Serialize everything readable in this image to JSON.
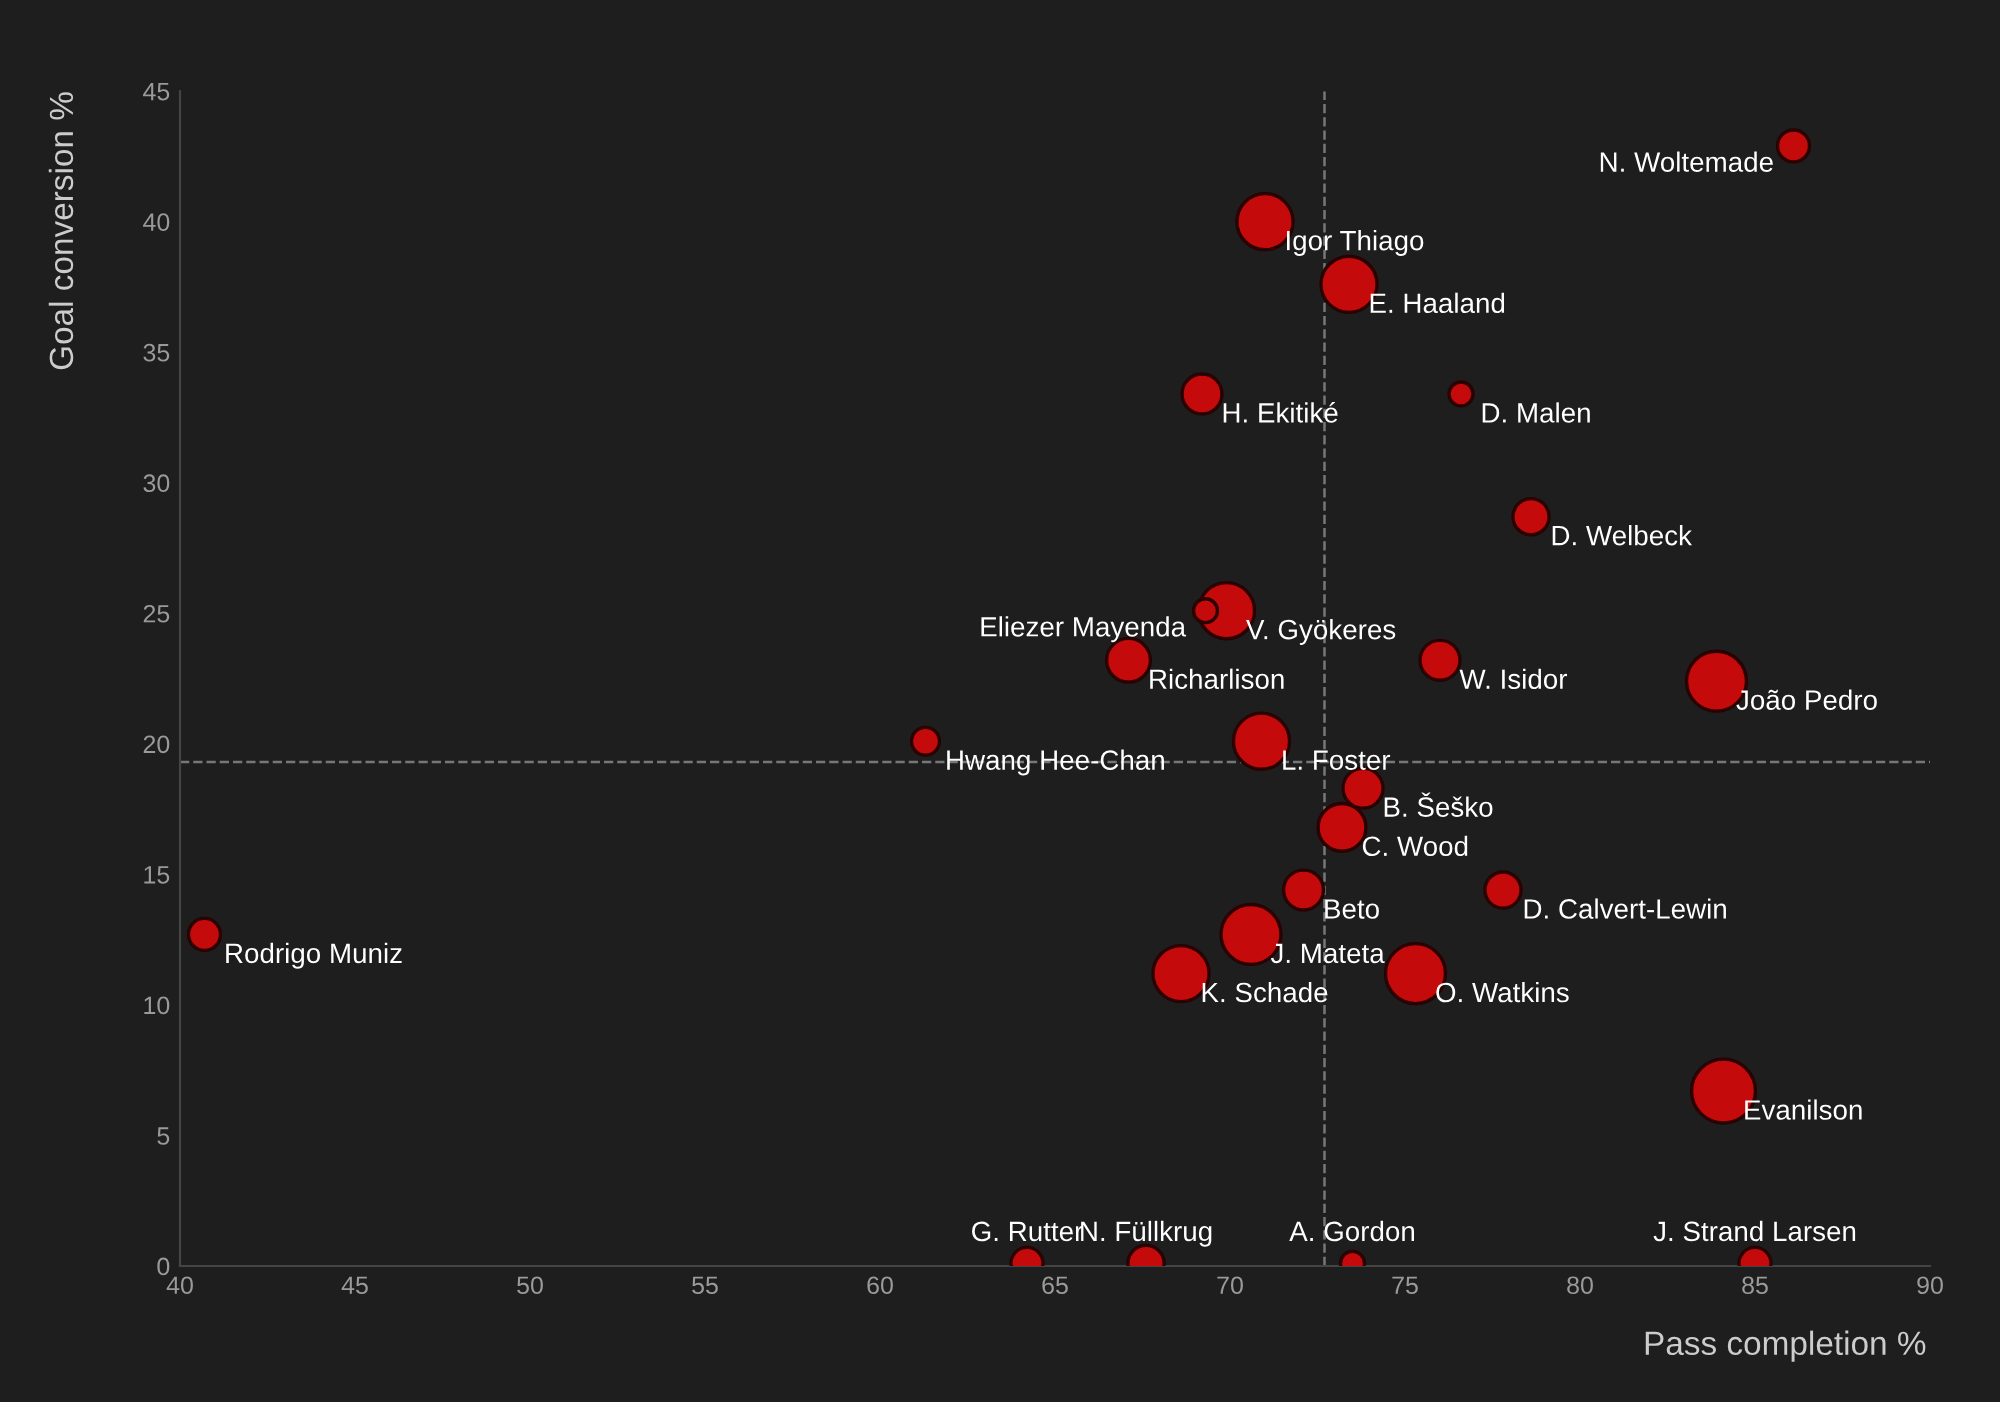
{
  "chart_data": {
    "type": "bubble",
    "xlabel": "Pass completion %",
    "ylabel": "Goal conversion %",
    "xlim": [
      40,
      90
    ],
    "xticks": [
      40,
      45,
      50,
      55,
      60,
      65,
      70,
      75,
      80,
      85,
      90
    ],
    "ylim": [
      0,
      45
    ],
    "yticks": [
      0,
      5,
      10,
      15,
      20,
      25,
      30,
      35,
      40,
      45
    ],
    "grid": false,
    "legend": false,
    "series": [
      {
        "color": "#c40a0a",
        "x": [
          86.1,
          71.0,
          73.4,
          69.2,
          76.6,
          78.6,
          69.9,
          69.3,
          67.1,
          76.0,
          83.9,
          61.3,
          70.9,
          73.8,
          73.2,
          72.1,
          77.8,
          40.7,
          70.6,
          68.6,
          75.3,
          84.1,
          64.2,
          67.6,
          73.5,
          85.0
        ],
        "values": [
          42.9,
          40.0,
          37.6,
          33.4,
          33.4,
          28.7,
          25.1,
          25.1,
          23.2,
          23.2,
          22.4,
          20.1,
          20.1,
          18.3,
          16.8,
          14.4,
          14.4,
          12.7,
          12.7,
          11.2,
          11.2,
          6.7,
          0.1,
          0.1,
          0.1,
          0.1
        ],
        "sizes": [
          0.25,
          0.77,
          0.77,
          0.39,
          0.14,
          0.32,
          0.77,
          0.14,
          0.47,
          0.39,
          0.88,
          0.19,
          0.77,
          0.39,
          0.56,
          0.39,
          0.32,
          0.25,
          0.88,
          0.77,
          0.88,
          1,
          0.25,
          0.32,
          0.14,
          0.25
        ]
      }
    ],
    "ref_lines": [
      {
        "axis": "x",
        "value": 72.7,
        "color": "#777777",
        "line_style": "dashed"
      },
      {
        "axis": "y",
        "value": 19.3,
        "color": "#777777",
        "line_style": "dashed"
      }
    ],
    "annotations": [
      {
        "text": "N. Woltemade",
        "x": 86.1,
        "y": 42.9
      },
      {
        "text": "Igor Thiago",
        "x": 71.0,
        "y": 40.0
      },
      {
        "text": "E. Haaland",
        "x": 73.4,
        "y": 37.6
      },
      {
        "text": "H. Ekitiké",
        "x": 69.2,
        "y": 33.4
      },
      {
        "text": "D. Malen",
        "x": 76.6,
        "y": 33.4
      },
      {
        "text": "D. Welbeck",
        "x": 78.6,
        "y": 28.7
      },
      {
        "text": "V. Gyökeres",
        "x": 69.9,
        "y": 25.1
      },
      {
        "text": "Eliezer Mayenda",
        "x": 69.3,
        "y": 25.1
      },
      {
        "text": "Richarlison",
        "x": 67.1,
        "y": 23.2
      },
      {
        "text": "W. Isidor",
        "x": 76.0,
        "y": 23.2
      },
      {
        "text": "João Pedro",
        "x": 83.9,
        "y": 22.4
      },
      {
        "text": "Hwang Hee-Chan",
        "x": 61.3,
        "y": 20.1
      },
      {
        "text": "L. Foster",
        "x": 70.9,
        "y": 20.1
      },
      {
        "text": "B. Šeško",
        "x": 73.8,
        "y": 18.3
      },
      {
        "text": "C. Wood",
        "x": 73.2,
        "y": 16.8
      },
      {
        "text": "Beto",
        "x": 72.1,
        "y": 14.4
      },
      {
        "text": "D. Calvert-Lewin",
        "x": 77.8,
        "y": 14.4
      },
      {
        "text": "Rodrigo Muniz",
        "x": 40.7,
        "y": 12.7
      },
      {
        "text": "J. Mateta",
        "x": 70.6,
        "y": 12.7
      },
      {
        "text": "K. Schade",
        "x": 68.6,
        "y": 11.2
      },
      {
        "text": "O. Watkins",
        "x": 75.3,
        "y": 11.2
      },
      {
        "text": "Evanilson",
        "x": 84.1,
        "y": 6.7
      },
      {
        "text": "G. Rutter",
        "x": 64.2,
        "y": 0.1
      },
      {
        "text": "N. Füllkrug",
        "x": 67.6,
        "y": 0.1
      },
      {
        "text": "A. Gordon",
        "x": 73.5,
        "y": 0.1
      },
      {
        "text": "J. Strand Larsen",
        "x": 85.0,
        "y": 0.1
      }
    ]
  }
}
